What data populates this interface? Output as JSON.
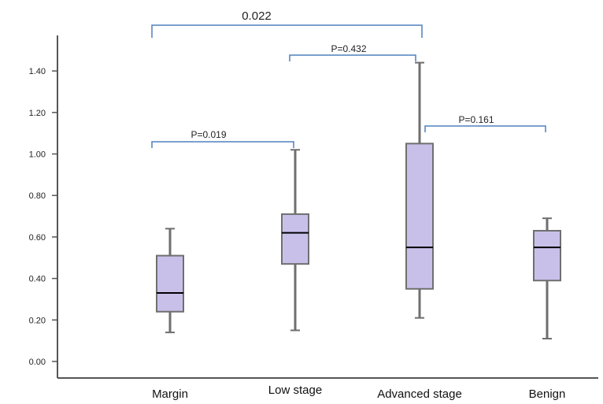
{
  "chart_data": {
    "type": "boxplot",
    "title": "",
    "xlabel": "",
    "ylabel": "",
    "ylim": [
      0.0,
      1.5
    ],
    "yticks": [
      0.0,
      0.2,
      0.4,
      0.6,
      0.8,
      1.0,
      1.2,
      1.4
    ],
    "ytick_labels": [
      "0.00",
      "0.20",
      "0.40",
      "0.60",
      "0.80",
      "1.00",
      "1.20",
      "1.40"
    ],
    "grid": false,
    "colors": {
      "box_fill": "#c9c0ea",
      "box_stroke": "#6f6f6f",
      "median": "#000000",
      "bracket": "#4f81bd",
      "axis": "#555555"
    },
    "categories": [
      "Margin",
      "Low stage",
      "Advanced stage",
      "Benign"
    ],
    "boxes": [
      {
        "label": "Margin",
        "min": 0.14,
        "q1": 0.24,
        "median": 0.33,
        "q3": 0.51,
        "max": 0.64
      },
      {
        "label": "Low stage",
        "min": 0.15,
        "q1": 0.47,
        "median": 0.62,
        "q3": 0.71,
        "max": 1.02
      },
      {
        "label": "Advanced stage",
        "min": 0.21,
        "q1": 0.35,
        "median": 0.55,
        "q3": 1.05,
        "max": 1.44
      },
      {
        "label": "Benign",
        "min": 0.11,
        "q1": 0.39,
        "median": 0.55,
        "q3": 0.63,
        "max": 0.69
      }
    ],
    "comparisons": [
      {
        "from": "Margin",
        "to": "Low stage",
        "label": "P=0.019"
      },
      {
        "from": "Low stage",
        "to": "Advanced stage",
        "label": "P=0.432"
      },
      {
        "from": "Advanced stage",
        "to": "Benign",
        "label": "P=0.161"
      },
      {
        "from": "Margin",
        "to": "Advanced stage",
        "label": "0.022"
      }
    ]
  }
}
